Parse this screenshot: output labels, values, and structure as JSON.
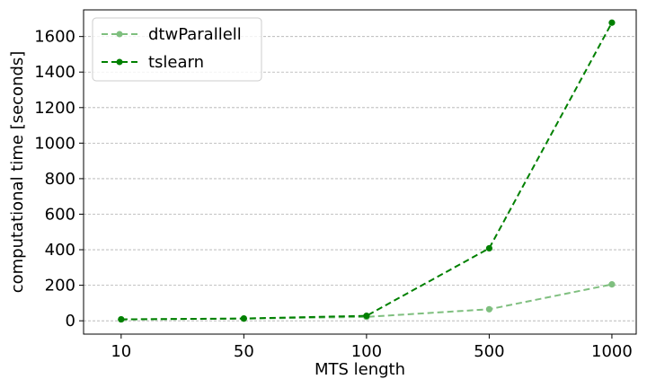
{
  "chart_data": {
    "type": "line",
    "xlabel": "MTS length",
    "ylabel": "computational time [seconds]",
    "x_tick_labels": [
      "10",
      "50",
      "100",
      "500",
      "1000"
    ],
    "y_ticks": [
      0,
      200,
      400,
      600,
      800,
      1000,
      1200,
      1400,
      1600
    ],
    "ylim": [
      -75,
      1750
    ],
    "grid": "horizontal dashed",
    "legend_position": "top-left",
    "series": [
      {
        "name": "dtwParallell",
        "color": "#7fbf7f",
        "marker": "circle",
        "linestyle": "dashed",
        "values": [
          8,
          12,
          22,
          65,
          205
        ]
      },
      {
        "name": "tslearn",
        "color": "#008000",
        "marker": "circle",
        "linestyle": "dashed",
        "values": [
          8,
          13,
          28,
          408,
          1678
        ]
      }
    ]
  }
}
